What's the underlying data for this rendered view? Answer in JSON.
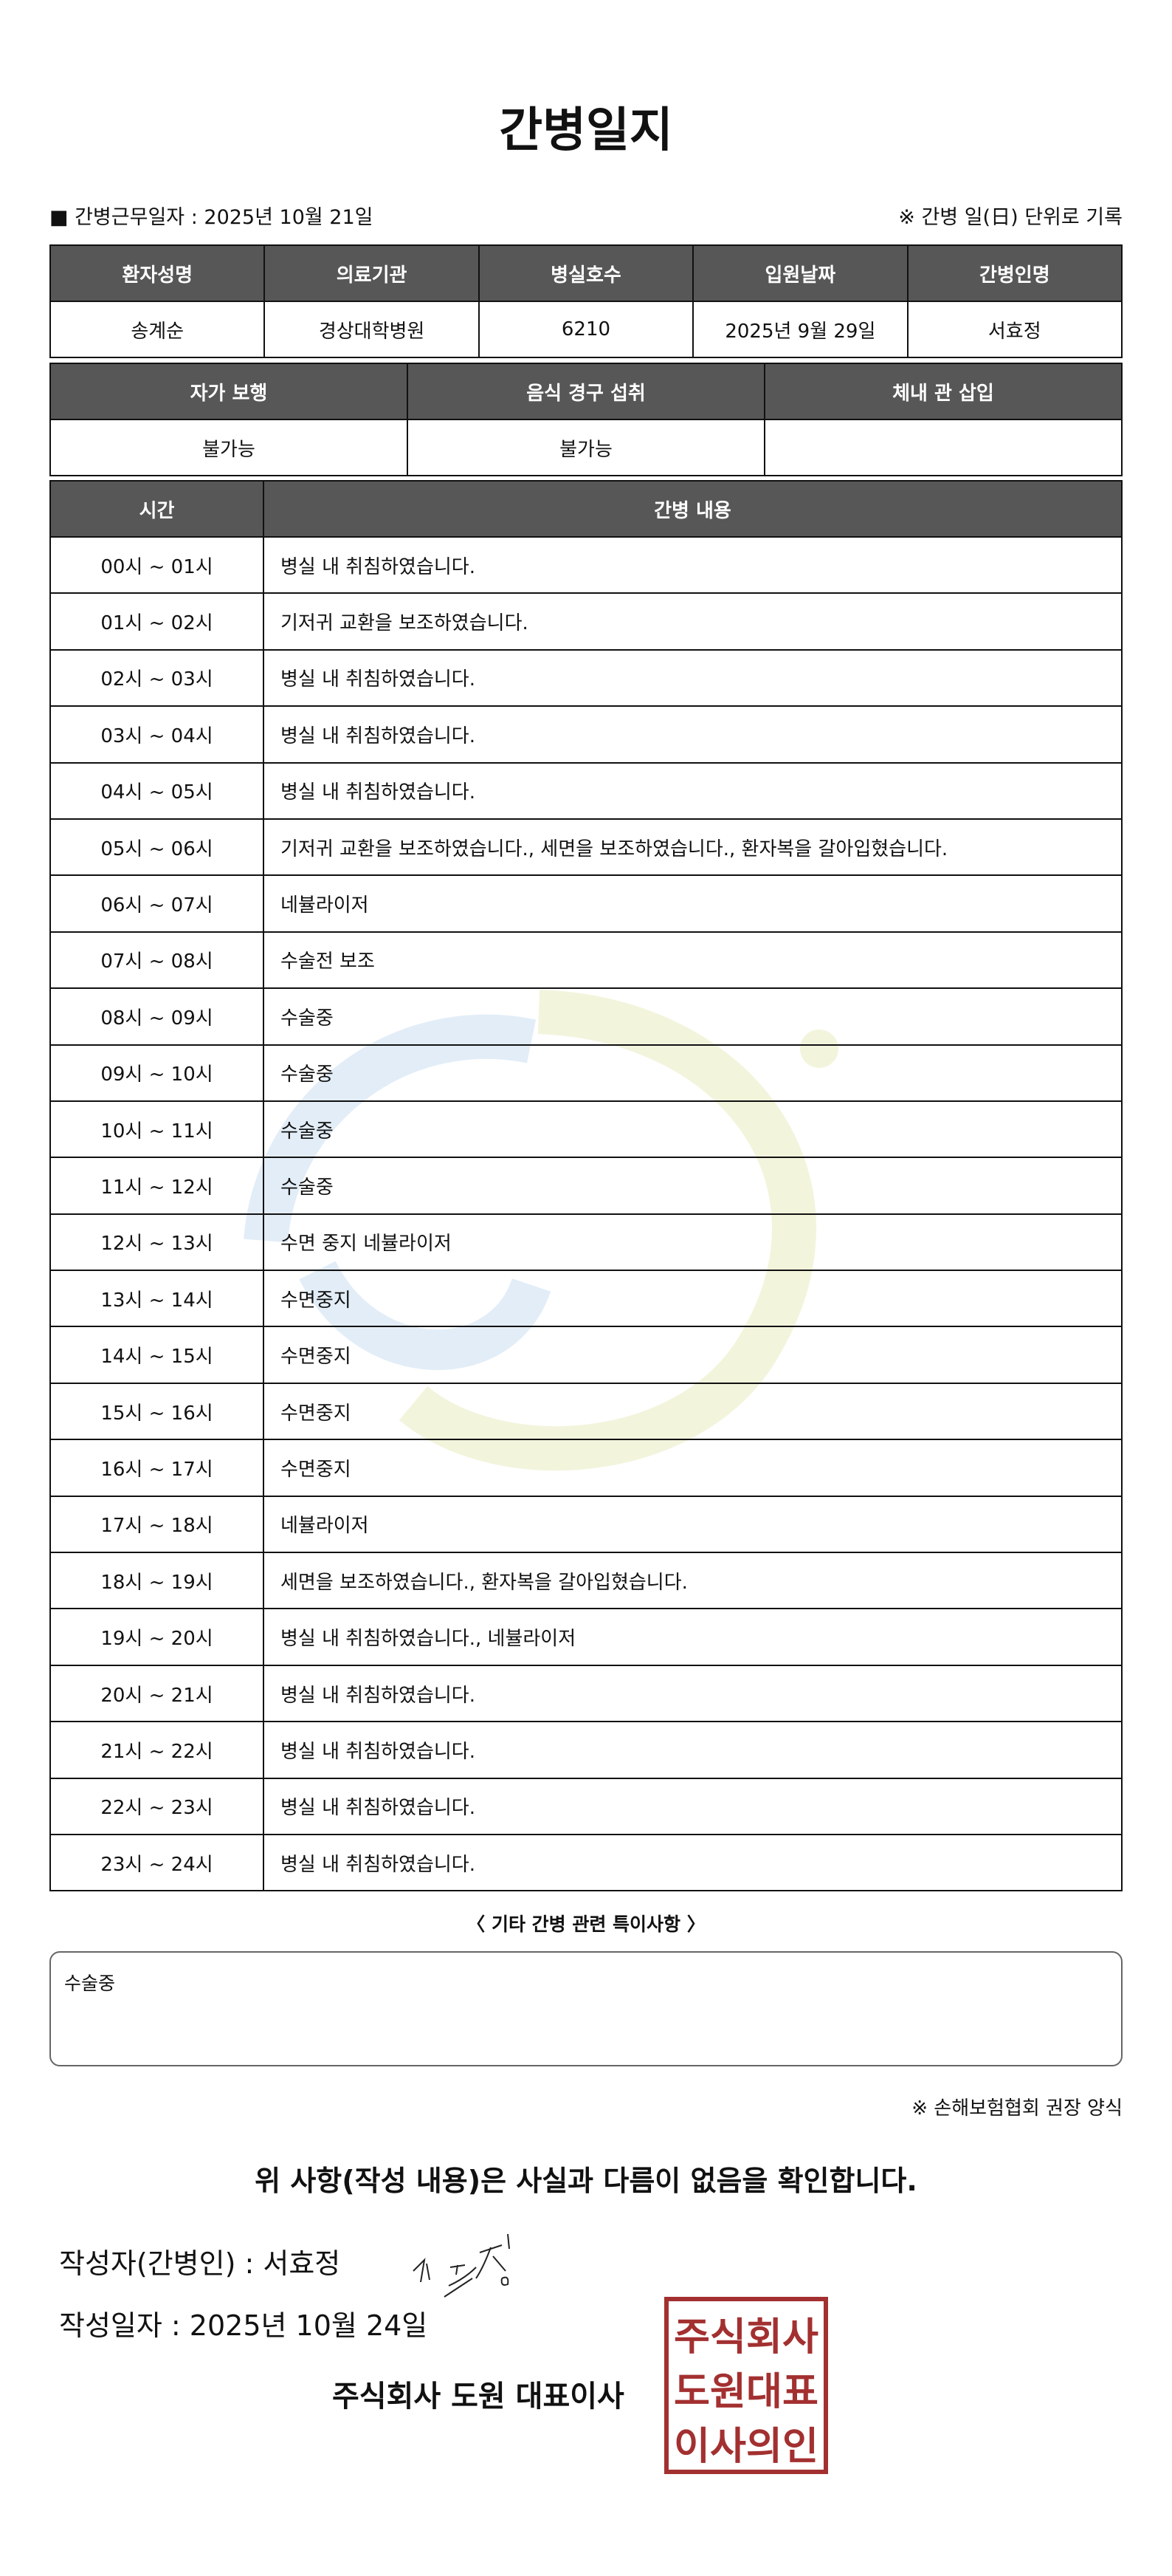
{
  "title": "간병일지",
  "info": {
    "work_date": "■ 간병근무일자 :  2025년 10월 21일",
    "note": "※ 간병 일(日) 단위로 기록"
  },
  "patient_table": {
    "headers": [
      "환자성명",
      "의료기관",
      "병실호수",
      "입원날짜",
      "간병인명"
    ],
    "values": [
      "송계순",
      "경상대학병원",
      "6210",
      "2025년 9월 29일",
      "서효정"
    ]
  },
  "status_table": {
    "headers": [
      "자가 보행",
      "음식 경구 섭취",
      "체내 관 삽입"
    ],
    "values": [
      "불가능",
      "불가능",
      ""
    ]
  },
  "log": {
    "headers": [
      "시간",
      "간병 내용"
    ],
    "rows": [
      {
        "time": "00시 ~ 01시",
        "content": "병실 내 취침하였습니다."
      },
      {
        "time": "01시 ~ 02시",
        "content": "기저귀 교환을 보조하였습니다."
      },
      {
        "time": "02시 ~ 03시",
        "content": "병실 내 취침하였습니다."
      },
      {
        "time": "03시 ~ 04시",
        "content": "병실 내 취침하였습니다."
      },
      {
        "time": "04시 ~ 05시",
        "content": "병실 내 취침하였습니다."
      },
      {
        "time": "05시 ~ 06시",
        "content": "기저귀 교환을 보조하였습니다., 세면을 보조하였습니다., 환자복을 갈아입혔습니다."
      },
      {
        "time": "06시 ~ 07시",
        "content": "네뷸라이저"
      },
      {
        "time": "07시 ~ 08시",
        "content": "수술전 보조"
      },
      {
        "time": "08시 ~ 09시",
        "content": "수술중"
      },
      {
        "time": "09시 ~ 10시",
        "content": "수술중"
      },
      {
        "time": "10시 ~ 11시",
        "content": "수술중"
      },
      {
        "time": "11시 ~ 12시",
        "content": "수술중"
      },
      {
        "time": "12시 ~ 13시",
        "content": "수면 중지 네뷸라이저"
      },
      {
        "time": "13시 ~ 14시",
        "content": "수면중지"
      },
      {
        "time": "14시 ~ 15시",
        "content": "수면중지"
      },
      {
        "time": "15시 ~ 16시",
        "content": "수면중지"
      },
      {
        "time": "16시 ~ 17시",
        "content": "수면중지"
      },
      {
        "time": "17시 ~ 18시",
        "content": "네뷸라이저"
      },
      {
        "time": "18시 ~ 19시",
        "content": "세면을 보조하였습니다., 환자복을 갈아입혔습니다."
      },
      {
        "time": "19시 ~ 20시",
        "content": "병실 내 취침하였습니다., 네뷸라이저"
      },
      {
        "time": "20시 ~ 21시",
        "content": "병실 내 취침하였습니다."
      },
      {
        "time": "21시 ~ 22시",
        "content": "병실 내 취침하였습니다."
      },
      {
        "time": "22시 ~ 23시",
        "content": "병실 내 취침하였습니다."
      },
      {
        "time": "23시 ~ 24시",
        "content": "병실 내 취침하였습니다."
      }
    ]
  },
  "special": {
    "title": "〈 기타 간병 관련 특이사항 〉",
    "content": "수술중"
  },
  "form_note": "※ 손해보험협회 권장 양식",
  "confirm": "위 사항(작성 내용)은 사실과 다름이 없음을 확인합니다.",
  "writer": "작성자(간병인) :   서효정",
  "written_date": "작성일자 :   2025년 10월 24일",
  "company": "주식회사 도원   대표이사",
  "stamp_text": "주식회사도원대표이사의인",
  "colors": {
    "header_bg": "#575757",
    "stamp": "#a33030"
  }
}
